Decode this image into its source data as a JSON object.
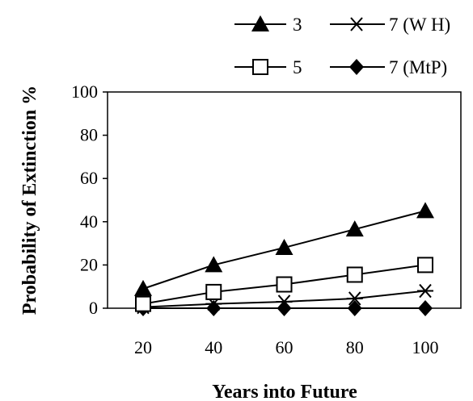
{
  "chart_data": {
    "type": "line",
    "xlabel": "Years into Future",
    "ylabel": "Probability of Extinction %",
    "x": [
      20,
      40,
      60,
      80,
      100
    ],
    "xticks": [
      "20",
      "40",
      "60",
      "80",
      "100"
    ],
    "ylim": [
      0,
      100
    ],
    "yticks": [
      "0",
      "20",
      "40",
      "60",
      "80",
      "100"
    ],
    "grid": false,
    "legend": "top",
    "series": [
      {
        "name": "3",
        "marker": "filled-triangle",
        "values": [
          9,
          20,
          28,
          36.5,
          45
        ]
      },
      {
        "name": "5",
        "marker": "open-square",
        "values": [
          2,
          7.5,
          11,
          15.5,
          20
        ]
      },
      {
        "name": "7 (W H)",
        "marker": "asterisk",
        "values": [
          0.5,
          2,
          3,
          4.5,
          8
        ]
      },
      {
        "name": "7 (MtP)",
        "marker": "filled-diamond",
        "values": [
          0,
          0,
          0,
          0,
          0
        ]
      }
    ],
    "colors": {
      "line": "#000000",
      "background": "#ffffff"
    }
  }
}
